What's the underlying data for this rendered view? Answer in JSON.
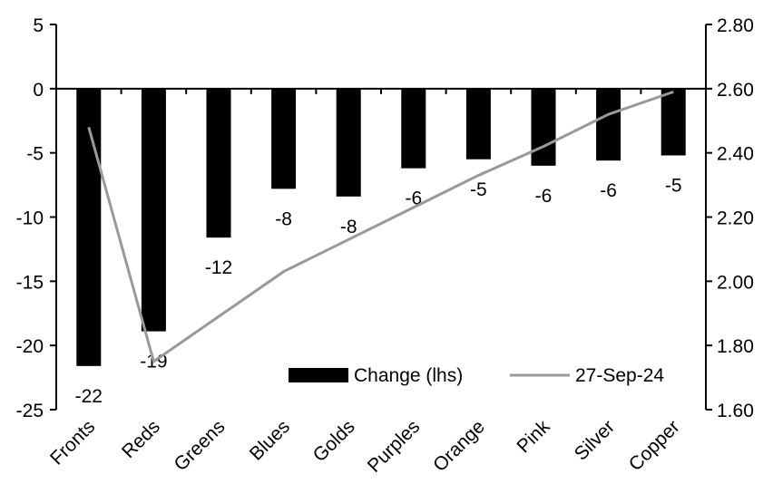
{
  "chart_data": {
    "type": "bar",
    "title": "",
    "categories": [
      "Fronts",
      "Reds",
      "Greens",
      "Blues",
      "Golds",
      "Purples",
      "Orange",
      "Pink",
      "Silver",
      "Copper"
    ],
    "series": [
      {
        "name": "Change (lhs)",
        "type": "bar",
        "axis": "left",
        "color": "#000000",
        "values": [
          -21.6,
          -18.9,
          -11.6,
          -7.8,
          -8.4,
          -6.2,
          -5.5,
          -6.0,
          -5.6,
          -5.2
        ],
        "labels": [
          "-22",
          "-19",
          "-12",
          "-8",
          "-8",
          "-6",
          "-5",
          "-6",
          "-6",
          "-5"
        ]
      },
      {
        "name": "27-Sep-24",
        "type": "line",
        "axis": "right",
        "color": "#999999",
        "values": [
          2.48,
          1.75,
          1.89,
          2.03,
          2.13,
          2.23,
          2.33,
          2.42,
          2.52,
          2.59
        ]
      }
    ],
    "left_axis": {
      "min": -25,
      "max": 5,
      "ticks": [
        "5",
        "0",
        "-5",
        "-10",
        "-15",
        "-20",
        "-25"
      ],
      "tick_values": [
        5,
        0,
        -5,
        -10,
        -15,
        -20,
        -25
      ]
    },
    "right_axis": {
      "min": 1.6,
      "max": 2.8,
      "ticks": [
        "2.80",
        "2.60",
        "2.40",
        "2.20",
        "2.00",
        "1.80",
        "1.60"
      ],
      "tick_values": [
        2.8,
        2.6,
        2.4,
        2.2,
        2.0,
        1.8,
        1.6
      ]
    },
    "grid": false,
    "legend": {
      "placement": "bottom-right",
      "items": [
        "Change (lhs)",
        "27-Sep-24"
      ]
    }
  }
}
